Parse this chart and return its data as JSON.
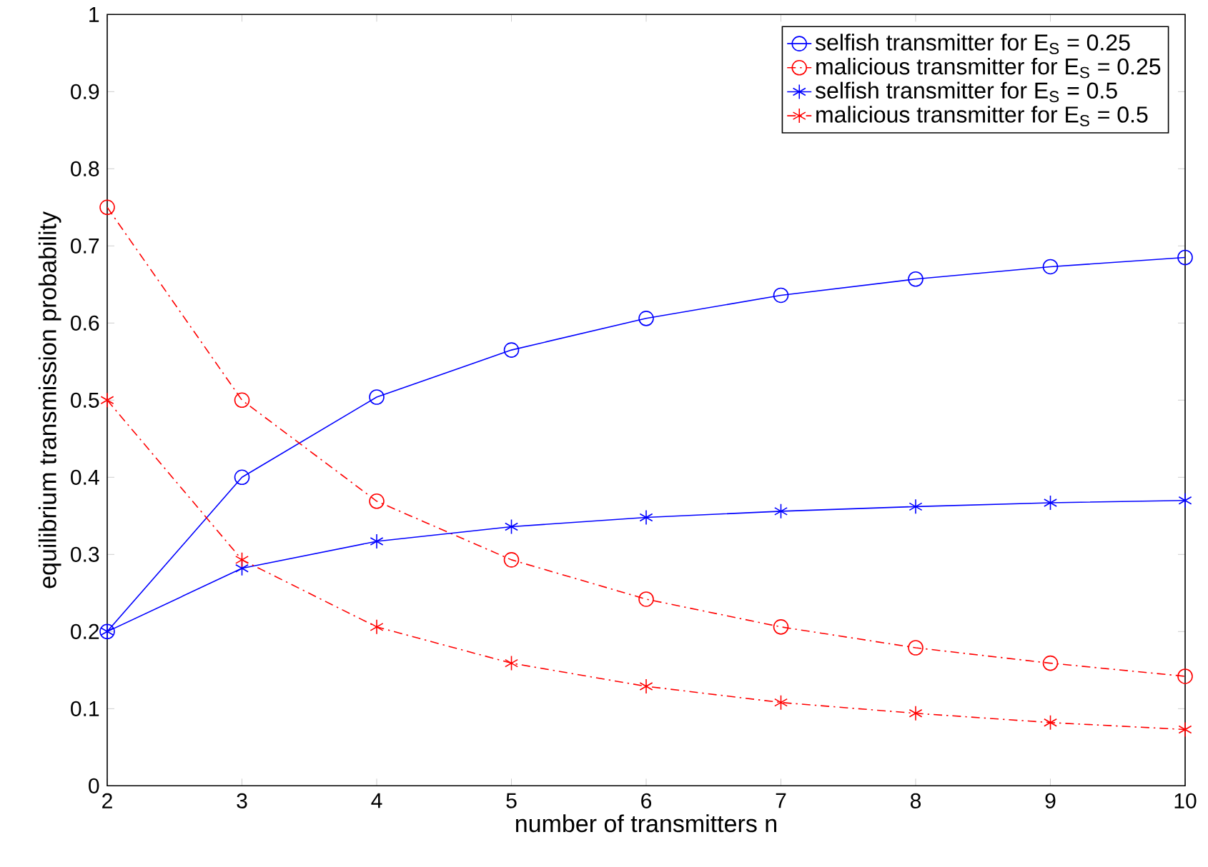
{
  "chart_data": {
    "type": "line",
    "xlabel": "number of transmitters n",
    "ylabel": "equilibrium transmission probability",
    "x": [
      2,
      3,
      4,
      5,
      6,
      7,
      8,
      9,
      10
    ],
    "series": [
      {
        "name": "selfish transmitter for E$_{S}$ = 0.25",
        "color": "#0000ff",
        "marker": "circle",
        "line_style": "solid",
        "values": [
          0.2,
          0.4,
          0.504,
          0.565,
          0.606,
          0.636,
          0.657,
          0.673,
          0.685
        ]
      },
      {
        "name": "malicious transmitter for E$_{S}$  = 0.25",
        "color": "#ff0000",
        "marker": "circle",
        "line_style": "dashdot",
        "values": [
          0.75,
          0.5,
          0.369,
          0.293,
          0.242,
          0.206,
          0.179,
          0.159,
          0.142
        ]
      },
      {
        "name": "selfish transmitter for E$_{S}$ = 0.5",
        "color": "#0000ff",
        "marker": "cross",
        "line_style": "solid",
        "values": [
          0.2,
          0.282,
          0.317,
          0.336,
          0.348,
          0.356,
          0.362,
          0.367,
          0.37
        ]
      },
      {
        "name": "malicious transmitter for E$_{S}$ = 0.5",
        "color": "#ff0000",
        "marker": "cross",
        "line_style": "dashdot",
        "values": [
          0.5,
          0.293,
          0.206,
          0.159,
          0.129,
          0.108,
          0.094,
          0.082,
          0.073
        ]
      }
    ],
    "xlim": [
      2,
      10
    ],
    "ylim": [
      0,
      1
    ],
    "xticks": [
      2,
      3,
      4,
      5,
      6,
      7,
      8,
      9,
      10
    ],
    "yticks": [
      0,
      0.1,
      0.2,
      0.3,
      0.4,
      0.5,
      0.6,
      0.7,
      0.8,
      0.9,
      1
    ],
    "grid": false,
    "legend": "top right"
  }
}
